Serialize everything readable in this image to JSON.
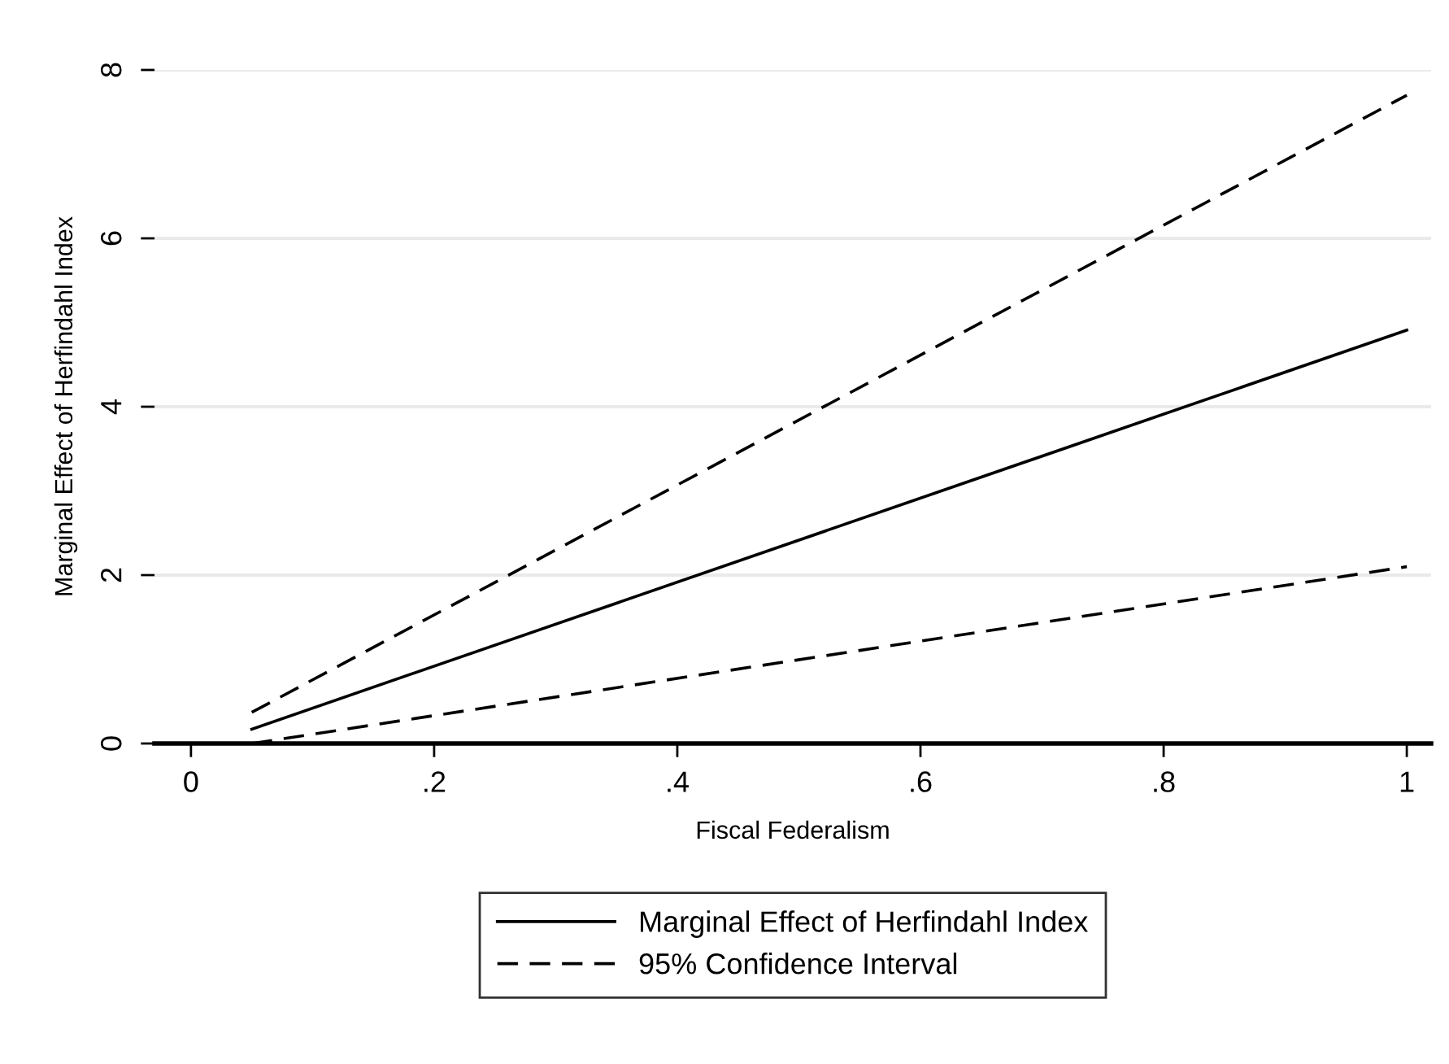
{
  "chart_data": {
    "type": "line",
    "xlabel": "Fiscal Federalism",
    "ylabel": "Marginal Effect of Herfindahl Index",
    "x": [
      0.05,
      1
    ],
    "series": [
      {
        "name": "Marginal Effect of Herfindahl Index",
        "color": "#000000",
        "values": [
          0.17,
          4.91
        ],
        "line_style": "solid"
      },
      {
        "name": "95% Confidence Interval",
        "color": "#000000",
        "values": [
          0.37,
          7.7
        ],
        "line_style": "dashed"
      },
      {
        "color": "#000000",
        "values": [
          0.0,
          2.1
        ],
        "line_style": "dashed"
      }
    ],
    "xlim": [
      -0.03,
      1.02
    ],
    "ylim": [
      0,
      8
    ],
    "xticks": [
      0,
      {
        "value": 0.2,
        "label": ".2"
      },
      {
        "value": 0.4,
        "label": ".4"
      },
      {
        "value": 0.6,
        "label": ".6"
      },
      {
        "value": 0.8,
        "label": ".8"
      },
      1
    ],
    "yticks": [
      0,
      2,
      4,
      6,
      8
    ],
    "grid": "y",
    "legend": "bottom"
  }
}
